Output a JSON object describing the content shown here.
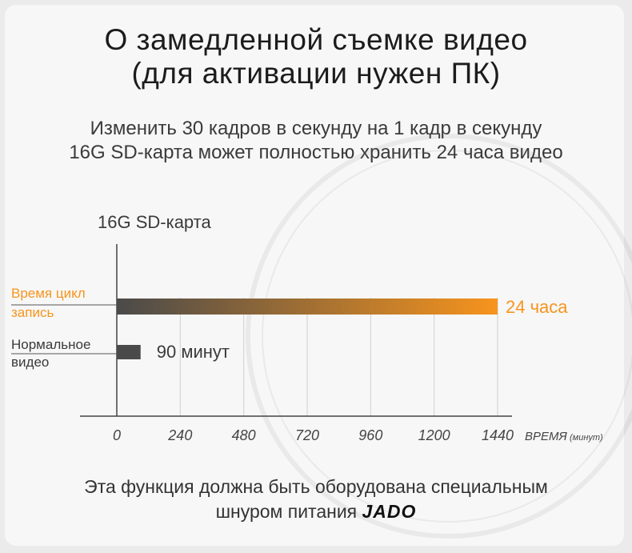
{
  "title_line1": "О замедленной съемке видео",
  "title_line2": "(для активации нужен ПК)",
  "subtitle_line1": "Изменить 30 кадров в секунду на 1 кадр в секунду",
  "subtitle_line2": "16G SD-карта может полностью хранить 24 часа видео",
  "footer_line1": "Эта функция должна быть оборудована специальным",
  "footer_line2_text": "шнуром питания",
  "footer_brand": "JADO",
  "chart_data": {
    "type": "bar",
    "orientation": "horizontal",
    "title": "16G SD-карта",
    "categories": [
      "Время цикл запись",
      "Нормальное видео"
    ],
    "category_lines": [
      [
        "Время цикл",
        "запись"
      ],
      [
        "Нормальное",
        "видео"
      ]
    ],
    "values": [
      1440,
      90
    ],
    "value_labels": [
      "24 часа",
      "90 минут"
    ],
    "xlabel": "ВРЕМЯ",
    "xlabel_unit": "(минут)",
    "xticks": [
      0,
      240,
      480,
      720,
      960,
      1200,
      1440
    ],
    "xlim": [
      0,
      1440
    ],
    "grid": true,
    "colors": {
      "highlight": "#f7941d",
      "bar_start": "#4a4a4a",
      "normal_bar": "#4a4a4a",
      "grid": "#cfcfcf"
    }
  }
}
